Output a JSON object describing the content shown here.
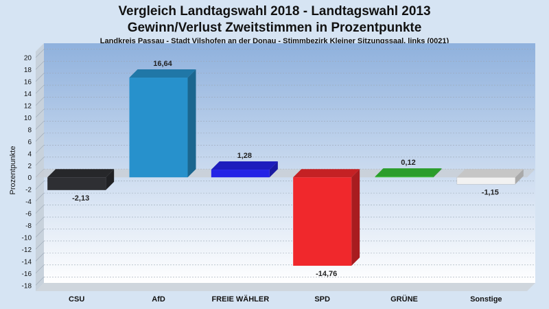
{
  "chart_data": {
    "type": "bar",
    "title": "Vergleich Landtagswahl 2018 - Landtagswahl 2013",
    "subtitle": "Gewinn/Verlust Zweitstimmen in Prozentpunkte",
    "caption": "Landkreis Passau - Stadt Vilshofen an der Donau - Stimmbezirk Kleiner Sitzungssaal, links (0021)",
    "ylabel": "Prozentpunkte",
    "xlabel": "",
    "ylim": [
      -19,
      21
    ],
    "yticks": [
      20,
      18,
      16,
      14,
      12,
      10,
      8,
      6,
      4,
      2,
      0,
      -2,
      -4,
      -6,
      -8,
      -10,
      -12,
      -14,
      -16,
      -18
    ],
    "categories": [
      "CSU",
      "AfD",
      "FREIE WÄHLER",
      "SPD",
      "GRÜNE",
      "Sonstige"
    ],
    "values": [
      -2.13,
      16.64,
      1.28,
      -14.76,
      0.12,
      -1.15
    ],
    "value_labels": [
      "-2,13",
      "16,64",
      "1,28",
      "-14,76",
      "0,12",
      "-1,15"
    ],
    "colors": [
      "#2e2f33",
      "#2791cc",
      "#2323e6",
      "#f0282c",
      "#35bf35",
      "#f2f2f2"
    ],
    "grid": true,
    "legend": "none"
  }
}
